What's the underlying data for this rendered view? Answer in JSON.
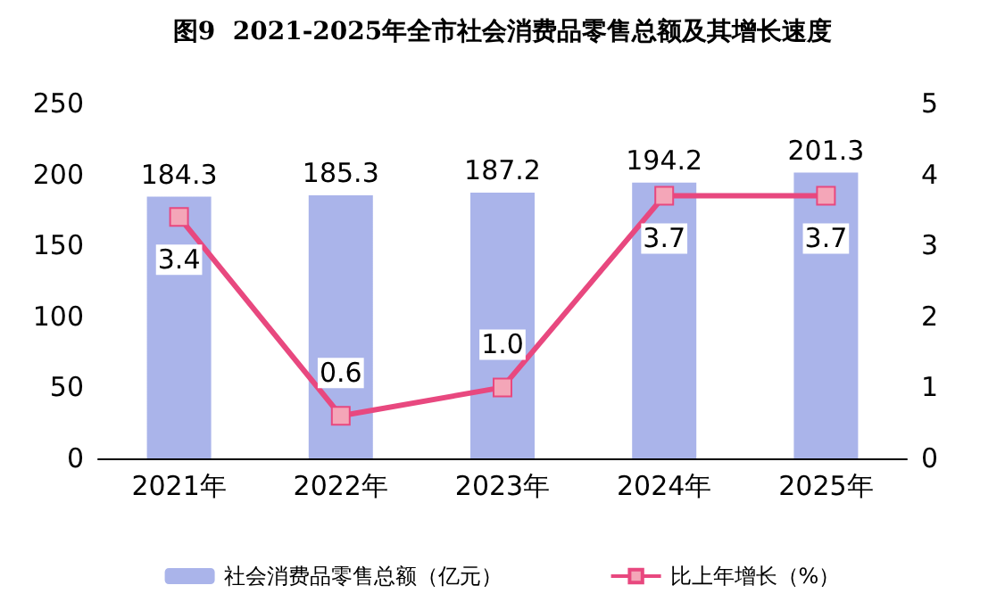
{
  "chart_data": {
    "type": "bar",
    "title": "图9  2021-2025年全市社会消费品零售总额及其增长速度",
    "categories": [
      "2021年",
      "2022年",
      "2023年",
      "2024年",
      "2025年"
    ],
    "series": [
      {
        "name": "社会消费品零售总额（亿元）",
        "color": "#aab4ea",
        "values": [
          184.3,
          185.3,
          187.2,
          194.2,
          201.3
        ],
        "value_labels": [
          "184.3",
          "185.3",
          "187.2",
          "194.2",
          "201.3"
        ]
      },
      {
        "name": "比上年增长（%）",
        "type": "line",
        "axis": "y2",
        "color": "#e8487f",
        "marker": "square",
        "values": [
          3.4,
          0.6,
          1.0,
          3.7,
          3.7
        ],
        "value_labels": [
          "3.4",
          "0.6",
          "1.0",
          "3.7",
          "3.7"
        ]
      }
    ],
    "ylim": [
      0,
      250
    ],
    "yticks": [
      0,
      50,
      100,
      150,
      200,
      250
    ],
    "y2lim": [
      0,
      5
    ],
    "y2ticks": [
      0,
      1,
      2,
      3,
      4,
      5
    ],
    "grid": false,
    "legend": "bottom"
  }
}
